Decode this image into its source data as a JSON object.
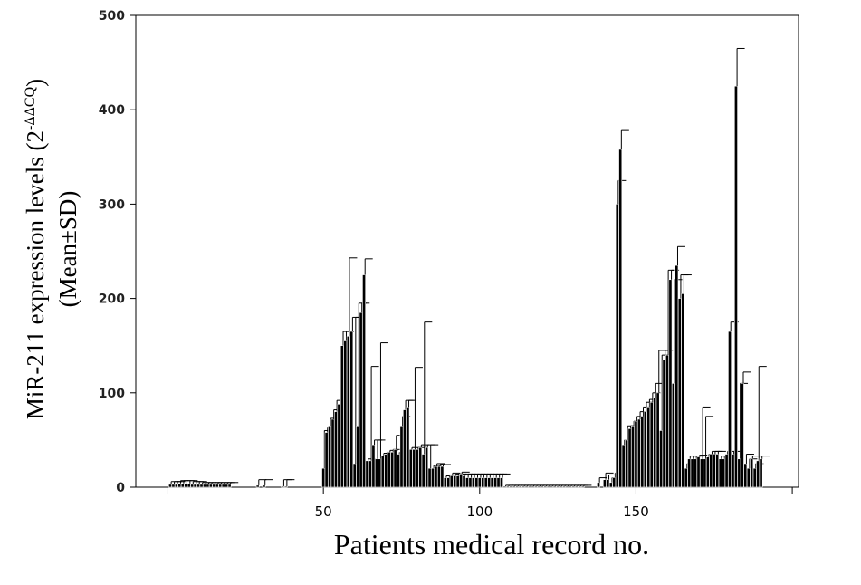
{
  "chart_data": {
    "type": "bar",
    "xlabel": "Patients medical record no.",
    "ylabel": {
      "text": "MiR-211 expression levels (2",
      "superscript": "-ΔΔCQ",
      "close": ")",
      "line2": "(Mean±SD)"
    },
    "color": "#000000",
    "xlim": [
      -10,
      202
    ],
    "xticks": [
      50,
      100,
      150
    ],
    "minor_xticks": [
      0,
      200
    ],
    "ylim": [
      0,
      500
    ],
    "yticks": [
      0,
      100,
      200,
      300,
      400,
      500
    ],
    "x": [
      1,
      2,
      3,
      4,
      5,
      6,
      7,
      8,
      9,
      10,
      11,
      12,
      13,
      14,
      15,
      16,
      17,
      18,
      19,
      20,
      29,
      31,
      37,
      38,
      50,
      51,
      52,
      53,
      54,
      55,
      56,
      57,
      58,
      59,
      60,
      61,
      62,
      63,
      64,
      65,
      66,
      67,
      68,
      69,
      70,
      71,
      72,
      73,
      74,
      75,
      76,
      77,
      78,
      79,
      80,
      81,
      82,
      83,
      84,
      85,
      86,
      87,
      88,
      89,
      90,
      91,
      92,
      93,
      94,
      95,
      96,
      97,
      98,
      99,
      100,
      101,
      102,
      103,
      104,
      105,
      106,
      107,
      108,
      109,
      110,
      111,
      112,
      113,
      114,
      115,
      116,
      117,
      118,
      119,
      120,
      121,
      122,
      123,
      124,
      125,
      126,
      127,
      128,
      129,
      130,
      131,
      132,
      133,
      138,
      140,
      141,
      142,
      143,
      144,
      145,
      146,
      147,
      148,
      149,
      150,
      151,
      152,
      153,
      154,
      155,
      156,
      157,
      158,
      159,
      160,
      161,
      162,
      163,
      164,
      165,
      166,
      167,
      168,
      169,
      170,
      171,
      172,
      173,
      174,
      175,
      176,
      177,
      178,
      179,
      180,
      181,
      182,
      183,
      184,
      185,
      186,
      187,
      188,
      189,
      190
    ],
    "values": [
      3,
      3,
      3,
      4,
      4,
      4,
      4,
      3,
      3,
      3,
      3,
      3,
      3,
      3,
      3,
      3,
      3,
      3,
      3,
      3,
      2,
      2,
      1,
      1,
      20,
      58,
      65,
      72,
      80,
      88,
      150,
      155,
      160,
      165,
      25,
      65,
      185,
      225,
      28,
      28,
      45,
      30,
      30,
      33,
      35,
      37,
      37,
      40,
      35,
      65,
      82,
      85,
      40,
      40,
      40,
      42,
      35,
      42,
      20,
      20,
      22,
      22,
      22,
      10,
      10,
      12,
      12,
      12,
      14,
      12,
      10,
      10,
      10,
      10,
      10,
      10,
      10,
      10,
      10,
      10,
      10,
      10,
      1,
      1,
      1,
      1,
      1,
      1,
      1,
      1,
      1,
      1,
      1,
      1,
      1,
      1,
      1,
      1,
      1,
      1,
      1,
      1,
      1,
      1,
      1,
      1,
      1,
      1,
      5,
      8,
      8,
      5,
      10,
      300,
      358,
      45,
      50,
      62,
      65,
      70,
      72,
      75,
      80,
      85,
      90,
      95,
      100,
      60,
      135,
      140,
      220,
      110,
      235,
      200,
      205,
      20,
      30,
      30,
      30,
      32,
      30,
      30,
      32,
      35,
      35,
      35,
      30,
      30,
      35,
      165,
      35,
      425,
      30,
      110,
      25,
      20,
      30,
      20,
      28,
      30
    ],
    "errors": [
      3,
      3,
      3,
      3,
      3,
      3,
      3,
      3,
      3,
      3,
      2,
      2,
      2,
      2,
      2,
      2,
      2,
      2,
      2,
      2,
      6,
      6,
      7,
      7,
      40,
      5,
      8,
      10,
      12,
      10,
      15,
      10,
      83,
      15,
      155,
      130,
      10,
      17,
      2,
      100,
      5,
      20,
      123,
      3,
      2,
      2,
      3,
      15,
      2,
      10,
      10,
      7,
      2,
      87,
      2,
      3,
      140,
      3,
      25,
      3,
      3,
      2,
      2,
      2,
      3,
      3,
      2,
      2,
      2,
      2,
      4,
      4,
      4,
      4,
      4,
      4,
      4,
      4,
      4,
      4,
      4,
      4,
      1,
      1,
      1,
      1,
      1,
      1,
      1,
      1,
      1,
      1,
      1,
      1,
      1,
      1,
      1,
      1,
      1,
      1,
      1,
      1,
      1,
      1,
      1,
      1,
      1,
      1,
      5,
      7,
      5,
      5,
      5,
      25,
      20,
      5,
      15,
      3,
      5,
      5,
      8,
      10,
      10,
      8,
      10,
      15,
      45,
      80,
      10,
      90,
      10,
      110,
      20,
      25,
      20,
      5,
      3,
      3,
      3,
      2,
      55,
      45,
      3,
      3,
      3,
      3,
      3,
      3,
      3,
      10,
      3,
      40,
      80,
      12,
      10,
      10,
      3,
      5,
      100,
      3
    ]
  }
}
